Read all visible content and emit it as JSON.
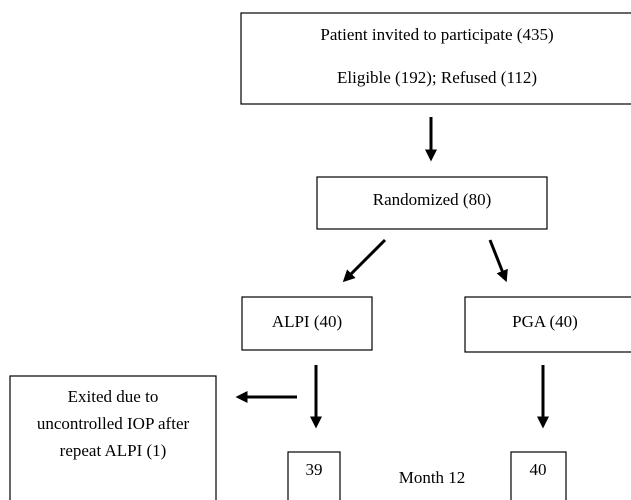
{
  "nodes": [
    {
      "lines": [
        "Patient invited to participate (435)",
        "Eligible (192); Refused (112)"
      ]
    },
    {
      "label": "Randomized (80)"
    },
    {
      "label": "ALPI (40)"
    },
    {
      "label": "PGA (40)"
    },
    {
      "lines": [
        "Exited due to",
        "uncontrolled IOP after",
        "repeat ALPI (1)"
      ]
    },
    {
      "label": "39"
    },
    {
      "label": "40"
    }
  ],
  "annotation": "Month 12"
}
